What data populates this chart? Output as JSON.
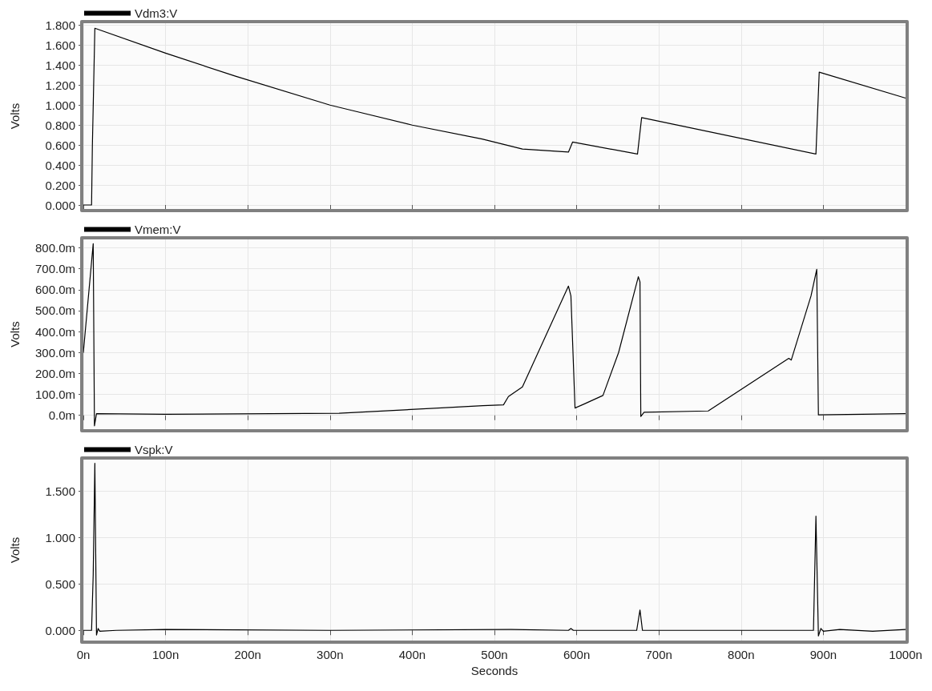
{
  "chart_data": [
    {
      "type": "line",
      "ylabel": "Volts",
      "grid": true,
      "legend": "top left",
      "tick_labels": "y",
      "xlim": [
        0,
        1000
      ],
      "xticks": [
        0,
        100,
        200,
        300,
        400,
        500,
        600,
        700,
        800,
        900,
        1000
      ],
      "ylim": [
        -0.04,
        1.82
      ],
      "yticks": [
        {
          "value": 0,
          "label": "0.000"
        },
        {
          "value": 0.2,
          "label": "0.200"
        },
        {
          "value": 0.4,
          "label": "0.400"
        },
        {
          "value": 0.6,
          "label": "0.600"
        },
        {
          "value": 0.8,
          "label": "0.800"
        },
        {
          "value": 1.0,
          "label": "1.000"
        },
        {
          "value": 1.2,
          "label": "1.200"
        },
        {
          "value": 1.4,
          "label": "1.400"
        },
        {
          "value": 1.6,
          "label": "1.600"
        },
        {
          "value": 1.8,
          "label": "1.800"
        }
      ],
      "series": [
        {
          "name": "Vdm3:V",
          "color": "#000000",
          "x": [
            0,
            10,
            11,
            14,
            100,
            185,
            300,
            325,
            400,
            485,
            534,
            590,
            595,
            674,
            679,
            891,
            895,
            1000
          ],
          "values": [
            0,
            0,
            0.6,
            1.77,
            1.52,
            1.29,
            1.0,
            0.95,
            0.8,
            0.66,
            0.56,
            0.53,
            0.63,
            0.51,
            0.875,
            0.51,
            1.33,
            1.07
          ]
        }
      ]
    },
    {
      "type": "line",
      "ylabel": "Volts",
      "grid": true,
      "legend": "top left",
      "tick_labels": "y",
      "xlim": [
        0,
        1000
      ],
      "xticks": [
        0,
        100,
        200,
        300,
        400,
        500,
        600,
        700,
        800,
        900,
        1000
      ],
      "ylim": [
        -66,
        840
      ],
      "yticks": [
        {
          "value": 0,
          "label": "0.0m"
        },
        {
          "value": 100,
          "label": "100.0m"
        },
        {
          "value": 200,
          "label": "200.0m"
        },
        {
          "value": 300,
          "label": "300.0m"
        },
        {
          "value": 400,
          "label": "400.0m"
        },
        {
          "value": 500,
          "label": "500.0m"
        },
        {
          "value": 600,
          "label": "600.0m"
        },
        {
          "value": 700,
          "label": "700.0m"
        },
        {
          "value": 800,
          "label": "800.0m"
        }
      ],
      "series": [
        {
          "name": "Vmem:V",
          "color": "#000000",
          "x": [
            0,
            12,
            13.5,
            16,
            100,
            311,
            486,
            511,
            517,
            534,
            590,
            593,
            598,
            609,
            632,
            651,
            675,
            677,
            678,
            682,
            760,
            858,
            861,
            885,
            892,
            894,
            1000
          ],
          "values": [
            300,
            820,
            -50,
            8,
            5,
            10,
            46,
            50,
            90,
            136,
            617,
            570,
            35,
            54,
            95,
            300,
            662,
            637,
            -5,
            15,
            21,
            272,
            264,
            570,
            697,
            2,
            8
          ]
        }
      ]
    },
    {
      "type": "line",
      "ylabel": "Volts",
      "xlabel": "Seconds",
      "grid": true,
      "legend": "top left",
      "xlim": [
        0,
        1000
      ],
      "xticks": [
        {
          "value": 0,
          "label": "0n"
        },
        {
          "value": 100,
          "label": "100n"
        },
        {
          "value": 200,
          "label": "200n"
        },
        {
          "value": 300,
          "label": "300n"
        },
        {
          "value": 400,
          "label": "400n"
        },
        {
          "value": 500,
          "label": "500n"
        },
        {
          "value": 600,
          "label": "600n"
        },
        {
          "value": 700,
          "label": "700n"
        },
        {
          "value": 800,
          "label": "800n"
        },
        {
          "value": 900,
          "label": "900n"
        },
        {
          "value": 1000,
          "label": "1000n"
        }
      ],
      "ylim": [
        -0.11,
        1.84
      ],
      "yticks": [
        {
          "value": 0,
          "label": "0.000"
        },
        {
          "value": 0.5,
          "label": "0.500"
        },
        {
          "value": 1.0,
          "label": "1.000"
        },
        {
          "value": 1.5,
          "label": "1.500"
        }
      ],
      "series": [
        {
          "name": "Vspk:V",
          "color": "#000000",
          "x": [
            0,
            10,
            12,
            14,
            16,
            18,
            20,
            40,
            100,
            300,
            520,
            590,
            593,
            596,
            673,
            677,
            680,
            888,
            891,
            894,
            897,
            900,
            920,
            960,
            1000
          ],
          "values": [
            0,
            0,
            0.6,
            1.8,
            -0.05,
            0.02,
            -0.01,
            0,
            0.01,
            0,
            0.01,
            0,
            0.02,
            0,
            0,
            0.22,
            0,
            0,
            1.23,
            -0.06,
            0.02,
            -0.01,
            0.01,
            -0.01,
            0.01
          ]
        }
      ]
    }
  ]
}
